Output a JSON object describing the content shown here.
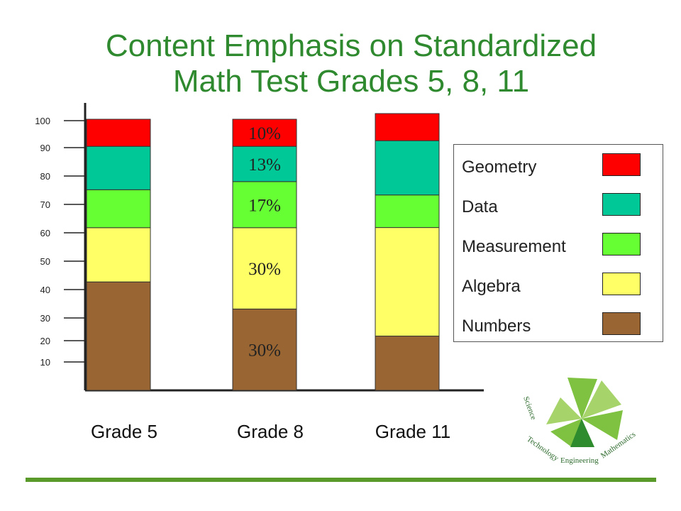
{
  "header": {
    "title_line1": "Content Emphasis on Standardized",
    "title_line2": "Math Test Grades 5, 8, 11"
  },
  "legend": {
    "items": [
      {
        "label": "Geometry",
        "color": "#ff0000"
      },
      {
        "label": "Data",
        "color": "#00c896"
      },
      {
        "label": "Measurement",
        "color": "#66ff33"
      },
      {
        "label": "Algebra",
        "color": "#ffff66"
      },
      {
        "label": "Numbers",
        "color": "#996633"
      }
    ]
  },
  "chart_data": {
    "type": "bar",
    "stacked": true,
    "categories": [
      "Grade 5",
      "Grade 8",
      "Grade 11"
    ],
    "y_ticks": [
      100,
      90,
      80,
      70,
      60,
      50,
      40,
      30,
      20,
      10
    ],
    "ylim": [
      0,
      100
    ],
    "series": [
      {
        "name": "Numbers",
        "color": "#996633",
        "values": [
          40,
          30,
          20
        ],
        "labels": [
          "",
          "30%",
          ""
        ]
      },
      {
        "name": "Algebra",
        "color": "#ffff66",
        "values": [
          20,
          30,
          40
        ],
        "labels": [
          "",
          "30%",
          ""
        ]
      },
      {
        "name": "Measurement",
        "color": "#66ff33",
        "values": [
          14,
          17,
          12
        ],
        "labels": [
          "",
          "17%",
          ""
        ]
      },
      {
        "name": "Data",
        "color": "#00c896",
        "values": [
          16,
          13,
          20
        ],
        "labels": [
          "",
          "13%",
          ""
        ]
      },
      {
        "name": "Geometry",
        "color": "#ff0000",
        "values": [
          10,
          10,
          10
        ],
        "labels": [
          "",
          "10%",
          ""
        ]
      }
    ]
  },
  "logo": {
    "words": [
      "Science",
      "Technology",
      "Engineering",
      "Mathematics"
    ]
  }
}
